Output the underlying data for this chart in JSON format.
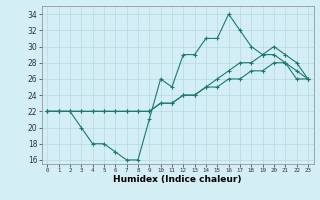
{
  "xlabel": "Humidex (Indice chaleur)",
  "ylabel": "",
  "background_color": "#d4eef5",
  "grid_color": "#b8d8e0",
  "line_color": "#1a7a6e",
  "xlim": [
    -0.5,
    23.5
  ],
  "ylim": [
    15.5,
    35.0
  ],
  "yticks": [
    16,
    18,
    20,
    22,
    24,
    26,
    28,
    30,
    32,
    34
  ],
  "xticks": [
    0,
    1,
    2,
    3,
    4,
    5,
    6,
    7,
    8,
    9,
    10,
    11,
    12,
    13,
    14,
    15,
    16,
    17,
    18,
    19,
    20,
    21,
    22,
    23
  ],
  "series": [
    {
      "x": [
        0,
        1,
        2,
        3,
        4,
        5,
        6,
        7,
        8,
        9,
        10,
        11,
        12,
        13,
        14,
        15,
        16,
        17,
        18,
        19,
        20,
        21,
        22,
        23
      ],
      "y": [
        22,
        22,
        22,
        20,
        18,
        18,
        17,
        16,
        16,
        21,
        26,
        25,
        29,
        29,
        31,
        31,
        34,
        32,
        30,
        29,
        29,
        28,
        27,
        26
      ]
    },
    {
      "x": [
        0,
        1,
        2,
        3,
        4,
        5,
        6,
        7,
        8,
        9,
        10,
        11,
        12,
        13,
        14,
        15,
        16,
        17,
        18,
        19,
        20,
        21,
        22,
        23
      ],
      "y": [
        22,
        22,
        22,
        22,
        22,
        22,
        22,
        22,
        22,
        22,
        23,
        23,
        24,
        24,
        25,
        25,
        26,
        26,
        27,
        27,
        28,
        28,
        26,
        26
      ]
    },
    {
      "x": [
        0,
        1,
        2,
        3,
        4,
        5,
        6,
        7,
        8,
        9,
        10,
        11,
        12,
        13,
        14,
        15,
        16,
        17,
        18,
        19,
        20,
        21,
        22,
        23
      ],
      "y": [
        22,
        22,
        22,
        22,
        22,
        22,
        22,
        22,
        22,
        22,
        23,
        23,
        24,
        24,
        25,
        26,
        27,
        28,
        28,
        29,
        30,
        29,
        28,
        26
      ]
    }
  ]
}
